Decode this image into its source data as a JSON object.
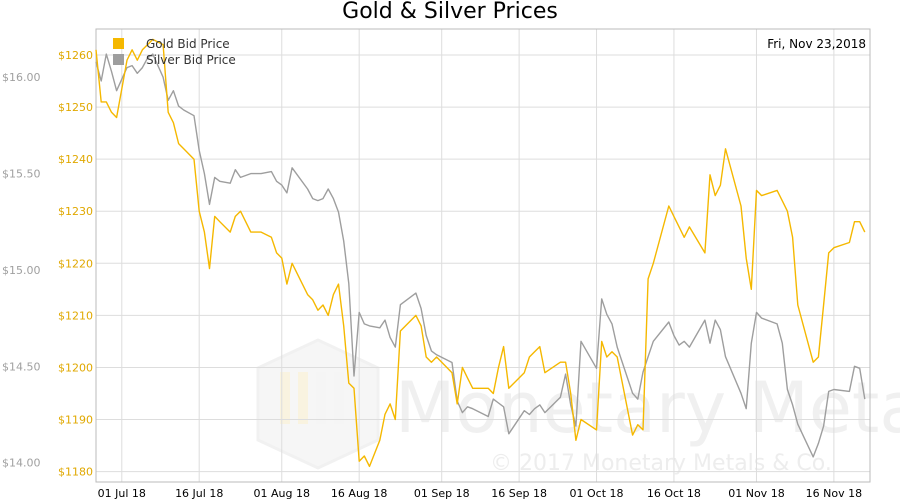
{
  "chart_data": {
    "type": "line",
    "title": "Gold & Silver Prices",
    "date_label": "Fri, Nov 23,2018",
    "colors": {
      "gold": "#f5b800",
      "silver": "#9e9e9e",
      "grid": "#dddddd"
    },
    "legend_position": "top-left",
    "watermark": {
      "brand": "Monetary Metals",
      "copyright": "© 2017 Monetary Metals & Co."
    },
    "x_ticks": [
      "01 Jul 18",
      "16 Jul 18",
      "01 Aug 18",
      "16 Aug 18",
      "01 Sep 18",
      "16 Sep 18",
      "01 Oct 18",
      "16 Oct 18",
      "01 Nov 18",
      "16 Nov 18"
    ],
    "x_tick_dates": [
      "2018-07-01",
      "2018-07-16",
      "2018-08-01",
      "2018-08-16",
      "2018-09-01",
      "2018-09-16",
      "2018-10-01",
      "2018-10-16",
      "2018-11-01",
      "2018-11-16"
    ],
    "xlim": [
      "2018-06-26",
      "2018-11-23"
    ],
    "y_left_ticks": [
      "$1180",
      "$1190",
      "$1200",
      "$1210",
      "$1220",
      "$1230",
      "$1240",
      "$1250",
      "$1260"
    ],
    "y_left_values": [
      1180,
      1190,
      1200,
      1210,
      1220,
      1230,
      1240,
      1250,
      1260
    ],
    "ylim_left": [
      1178,
      1265
    ],
    "y_right_ticks": [
      "$14.00",
      "$14.50",
      "$15.00",
      "$15.50",
      "$16.00"
    ],
    "y_right_values": [
      14.0,
      14.5,
      15.0,
      15.5,
      16.0
    ],
    "ylim_right": [
      13.9,
      16.25
    ],
    "series": [
      {
        "name": "Gold Bid Price",
        "axis": "left",
        "points": [
          [
            "2018-06-26",
            1261
          ],
          [
            "2018-06-27",
            1251
          ],
          [
            "2018-06-28",
            1251
          ],
          [
            "2018-06-29",
            1249
          ],
          [
            "2018-06-30",
            1248
          ],
          [
            "2018-07-02",
            1259
          ],
          [
            "2018-07-03",
            1261
          ],
          [
            "2018-07-04",
            1259
          ],
          [
            "2018-07-05",
            1261
          ],
          [
            "2018-07-06",
            1262
          ],
          [
            "2018-07-07",
            1263
          ],
          [
            "2018-07-09",
            1262
          ],
          [
            "2018-07-10",
            1249
          ],
          [
            "2018-07-11",
            1247
          ],
          [
            "2018-07-12",
            1243
          ],
          [
            "2018-07-13",
            1242
          ],
          [
            "2018-07-15",
            1240
          ],
          [
            "2018-07-16",
            1230
          ],
          [
            "2018-07-17",
            1226
          ],
          [
            "2018-07-18",
            1219
          ],
          [
            "2018-07-19",
            1229
          ],
          [
            "2018-07-20",
            1228
          ],
          [
            "2018-07-22",
            1226
          ],
          [
            "2018-07-23",
            1229
          ],
          [
            "2018-07-24",
            1230
          ],
          [
            "2018-07-26",
            1226
          ],
          [
            "2018-07-28",
            1226
          ],
          [
            "2018-07-30",
            1225
          ],
          [
            "2018-07-31",
            1222
          ],
          [
            "2018-08-01",
            1221
          ],
          [
            "2018-08-02",
            1216
          ],
          [
            "2018-08-03",
            1220
          ],
          [
            "2018-08-06",
            1214
          ],
          [
            "2018-08-07",
            1213
          ],
          [
            "2018-08-08",
            1211
          ],
          [
            "2018-08-09",
            1212
          ],
          [
            "2018-08-10",
            1210
          ],
          [
            "2018-08-11",
            1214
          ],
          [
            "2018-08-12",
            1216
          ],
          [
            "2018-08-13",
            1208
          ],
          [
            "2018-08-14",
            1197
          ],
          [
            "2018-08-15",
            1196
          ],
          [
            "2018-08-16",
            1182
          ],
          [
            "2018-08-17",
            1183
          ],
          [
            "2018-08-18",
            1181
          ],
          [
            "2018-08-20",
            1186
          ],
          [
            "2018-08-21",
            1191
          ],
          [
            "2018-08-22",
            1193
          ],
          [
            "2018-08-23",
            1190
          ],
          [
            "2018-08-24",
            1207
          ],
          [
            "2018-08-27",
            1210
          ],
          [
            "2018-08-28",
            1208
          ],
          [
            "2018-08-29",
            1202
          ],
          [
            "2018-08-30",
            1201
          ],
          [
            "2018-08-31",
            1202
          ],
          [
            "2018-09-03",
            1199
          ],
          [
            "2018-09-04",
            1193
          ],
          [
            "2018-09-05",
            1200
          ],
          [
            "2018-09-06",
            1198
          ],
          [
            "2018-09-07",
            1196
          ],
          [
            "2018-09-10",
            1196
          ],
          [
            "2018-09-11",
            1195
          ],
          [
            "2018-09-12",
            1200
          ],
          [
            "2018-09-13",
            1204
          ],
          [
            "2018-09-14",
            1196
          ],
          [
            "2018-09-17",
            1199
          ],
          [
            "2018-09-18",
            1202
          ],
          [
            "2018-09-19",
            1203
          ],
          [
            "2018-09-20",
            1204
          ],
          [
            "2018-09-21",
            1199
          ],
          [
            "2018-09-24",
            1201
          ],
          [
            "2018-09-25",
            1201
          ],
          [
            "2018-09-26",
            1195
          ],
          [
            "2018-09-27",
            1186
          ],
          [
            "2018-09-28",
            1190
          ],
          [
            "2018-10-01",
            1188
          ],
          [
            "2018-10-02",
            1205
          ],
          [
            "2018-10-03",
            1202
          ],
          [
            "2018-10-04",
            1203
          ],
          [
            "2018-10-05",
            1202
          ],
          [
            "2018-10-08",
            1187
          ],
          [
            "2018-10-09",
            1189
          ],
          [
            "2018-10-10",
            1188
          ],
          [
            "2018-10-11",
            1217
          ],
          [
            "2018-10-12",
            1220
          ],
          [
            "2018-10-15",
            1231
          ],
          [
            "2018-10-16",
            1229
          ],
          [
            "2018-10-17",
            1227
          ],
          [
            "2018-10-18",
            1225
          ],
          [
            "2018-10-19",
            1227
          ],
          [
            "2018-10-22",
            1222
          ],
          [
            "2018-10-23",
            1237
          ],
          [
            "2018-10-24",
            1233
          ],
          [
            "2018-10-25",
            1235
          ],
          [
            "2018-10-26",
            1242
          ],
          [
            "2018-10-29",
            1231
          ],
          [
            "2018-10-30",
            1221
          ],
          [
            "2018-10-31",
            1215
          ],
          [
            "2018-11-01",
            1234
          ],
          [
            "2018-11-02",
            1233
          ],
          [
            "2018-11-05",
            1234
          ],
          [
            "2018-11-06",
            1232
          ],
          [
            "2018-11-07",
            1230
          ],
          [
            "2018-11-08",
            1225
          ],
          [
            "2018-11-09",
            1212
          ],
          [
            "2018-11-12",
            1201
          ],
          [
            "2018-11-13",
            1202
          ],
          [
            "2018-11-14",
            1212
          ],
          [
            "2018-11-15",
            1222
          ],
          [
            "2018-11-16",
            1223
          ],
          [
            "2018-11-19",
            1224
          ],
          [
            "2018-11-20",
            1228
          ],
          [
            "2018-11-21",
            1228
          ],
          [
            "2018-11-22",
            1226
          ]
        ]
      },
      {
        "name": "Silver Bid Price",
        "axis": "right",
        "points": [
          [
            "2018-06-26",
            16.08
          ],
          [
            "2018-06-27",
            15.98
          ],
          [
            "2018-06-28",
            16.12
          ],
          [
            "2018-06-29",
            16.03
          ],
          [
            "2018-06-30",
            15.93
          ],
          [
            "2018-07-02",
            16.05
          ],
          [
            "2018-07-03",
            16.06
          ],
          [
            "2018-07-04",
            16.02
          ],
          [
            "2018-07-05",
            16.05
          ],
          [
            "2018-07-06",
            16.1
          ],
          [
            "2018-07-07",
            16.12
          ],
          [
            "2018-07-09",
            16.0
          ],
          [
            "2018-07-10",
            15.88
          ],
          [
            "2018-07-11",
            15.93
          ],
          [
            "2018-07-12",
            15.85
          ],
          [
            "2018-07-13",
            15.83
          ],
          [
            "2018-07-15",
            15.8
          ],
          [
            "2018-07-16",
            15.62
          ],
          [
            "2018-07-17",
            15.5
          ],
          [
            "2018-07-18",
            15.34
          ],
          [
            "2018-07-19",
            15.48
          ],
          [
            "2018-07-20",
            15.46
          ],
          [
            "2018-07-22",
            15.45
          ],
          [
            "2018-07-23",
            15.52
          ],
          [
            "2018-07-24",
            15.48
          ],
          [
            "2018-07-26",
            15.5
          ],
          [
            "2018-07-28",
            15.5
          ],
          [
            "2018-07-30",
            15.51
          ],
          [
            "2018-07-31",
            15.46
          ],
          [
            "2018-08-01",
            15.44
          ],
          [
            "2018-08-02",
            15.4
          ],
          [
            "2018-08-03",
            15.53
          ],
          [
            "2018-08-06",
            15.42
          ],
          [
            "2018-08-07",
            15.37
          ],
          [
            "2018-08-08",
            15.36
          ],
          [
            "2018-08-09",
            15.37
          ],
          [
            "2018-08-10",
            15.42
          ],
          [
            "2018-08-11",
            15.37
          ],
          [
            "2018-08-12",
            15.3
          ],
          [
            "2018-08-13",
            15.15
          ],
          [
            "2018-08-14",
            14.93
          ],
          [
            "2018-08-15",
            14.45
          ],
          [
            "2018-08-16",
            14.78
          ],
          [
            "2018-08-17",
            14.72
          ],
          [
            "2018-08-18",
            14.71
          ],
          [
            "2018-08-20",
            14.7
          ],
          [
            "2018-08-21",
            14.74
          ],
          [
            "2018-08-22",
            14.65
          ],
          [
            "2018-08-23",
            14.6
          ],
          [
            "2018-08-24",
            14.82
          ],
          [
            "2018-08-27",
            14.88
          ],
          [
            "2018-08-28",
            14.8
          ],
          [
            "2018-08-29",
            14.66
          ],
          [
            "2018-08-30",
            14.58
          ],
          [
            "2018-08-31",
            14.56
          ],
          [
            "2018-09-03",
            14.52
          ],
          [
            "2018-09-04",
            14.32
          ],
          [
            "2018-09-05",
            14.26
          ],
          [
            "2018-09-06",
            14.29
          ],
          [
            "2018-09-07",
            14.28
          ],
          [
            "2018-09-10",
            14.24
          ],
          [
            "2018-09-11",
            14.33
          ],
          [
            "2018-09-12",
            14.31
          ],
          [
            "2018-09-13",
            14.29
          ],
          [
            "2018-09-14",
            14.15
          ],
          [
            "2018-09-17",
            14.27
          ],
          [
            "2018-09-18",
            14.25
          ],
          [
            "2018-09-19",
            14.28
          ],
          [
            "2018-09-20",
            14.3
          ],
          [
            "2018-09-21",
            14.26
          ],
          [
            "2018-09-24",
            14.34
          ],
          [
            "2018-09-25",
            14.46
          ],
          [
            "2018-09-26",
            14.3
          ],
          [
            "2018-09-27",
            14.19
          ],
          [
            "2018-09-28",
            14.63
          ],
          [
            "2018-10-01",
            14.49
          ],
          [
            "2018-10-02",
            14.85
          ],
          [
            "2018-10-03",
            14.77
          ],
          [
            "2018-10-04",
            14.72
          ],
          [
            "2018-10-05",
            14.6
          ],
          [
            "2018-10-08",
            14.36
          ],
          [
            "2018-10-09",
            14.33
          ],
          [
            "2018-10-10",
            14.47
          ],
          [
            "2018-10-11",
            14.55
          ],
          [
            "2018-10-12",
            14.63
          ],
          [
            "2018-10-15",
            14.73
          ],
          [
            "2018-10-16",
            14.66
          ],
          [
            "2018-10-17",
            14.61
          ],
          [
            "2018-10-18",
            14.63
          ],
          [
            "2018-10-19",
            14.6
          ],
          [
            "2018-10-22",
            14.74
          ],
          [
            "2018-10-23",
            14.62
          ],
          [
            "2018-10-24",
            14.74
          ],
          [
            "2018-10-25",
            14.69
          ],
          [
            "2018-10-26",
            14.55
          ],
          [
            "2018-10-29",
            14.36
          ],
          [
            "2018-10-30",
            14.28
          ],
          [
            "2018-10-31",
            14.62
          ],
          [
            "2018-11-01",
            14.78
          ],
          [
            "2018-11-02",
            14.75
          ],
          [
            "2018-11-05",
            14.72
          ],
          [
            "2018-11-06",
            14.62
          ],
          [
            "2018-11-07",
            14.38
          ],
          [
            "2018-11-08",
            14.3
          ],
          [
            "2018-11-09",
            14.2
          ],
          [
            "2018-11-12",
            14.03
          ],
          [
            "2018-11-13",
            14.1
          ],
          [
            "2018-11-14",
            14.19
          ],
          [
            "2018-11-15",
            14.37
          ],
          [
            "2018-11-16",
            14.38
          ],
          [
            "2018-11-19",
            14.37
          ],
          [
            "2018-11-20",
            14.5
          ],
          [
            "2018-11-21",
            14.49
          ],
          [
            "2018-11-22",
            14.33
          ]
        ]
      }
    ]
  }
}
